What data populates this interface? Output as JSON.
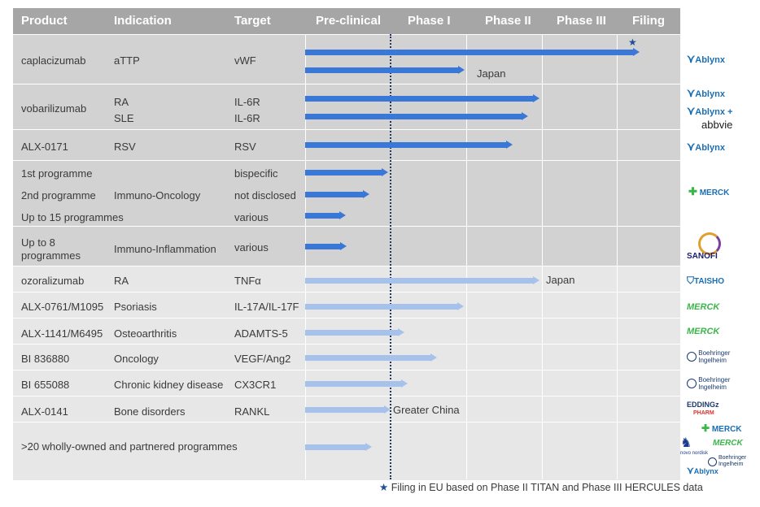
{
  "headers": [
    "Product",
    "Indication",
    "Target",
    "Pre-clinical",
    "Phase I",
    "Phase II",
    "Phase III",
    "Filing"
  ],
  "chart_data": {
    "type": "table",
    "phases": [
      "Pre-clinical",
      "Phase I",
      "Phase II",
      "Phase III",
      "Filing"
    ],
    "rows": [
      {
        "product": "caplacizumab",
        "indication": "aTTP",
        "target": "vWF",
        "progress": [
          4.35,
          1.97
        ],
        "notes": [
          "",
          "Japan"
        ],
        "star": true,
        "partner": "Ablynx",
        "group": "dark"
      },
      {
        "product": "vobarilizumab",
        "indication": [
          "RA",
          "SLE"
        ],
        "target": [
          "IL-6R",
          "IL-6R"
        ],
        "progress": [
          2.96,
          2.81
        ],
        "partner": [
          "Ablynx",
          "Ablynx +",
          "abbvie"
        ],
        "group": "dark"
      },
      {
        "product": "ALX-0171",
        "indication": "RSV",
        "target": "RSV",
        "progress": [
          2.6
        ],
        "partner": "Ablynx",
        "group": "dark"
      },
      {
        "product": [
          "1st programme",
          "2nd programme",
          "Up to 15 programmes"
        ],
        "indication": "Immuno-Oncology",
        "target": [
          "bispecific",
          "not disclosed",
          "various"
        ],
        "progress": [
          0.97,
          0.75,
          0.47
        ],
        "partner": "MERCK",
        "group": "dark"
      },
      {
        "product": "Up to 8 programmes",
        "indication": "Immuno-Inflammation",
        "target": "various",
        "progress": [
          0.48
        ],
        "partner": "SANOFI",
        "group": "dark"
      },
      {
        "product": "ozoralizumab",
        "indication": "RA",
        "target": "TNFα",
        "progress": [
          2.96
        ],
        "note": "Japan",
        "partner": "TAISHO",
        "group": "light"
      },
      {
        "product": "ALX-0761/M1095",
        "indication": "Psoriasis",
        "target": "IL-17A/IL-17F",
        "progress": [
          1.96
        ],
        "partner": "MERCK",
        "group": "light"
      },
      {
        "product": "ALX-1141/M6495",
        "indication": "Osteoarthritis",
        "target": "ADAMTS-5",
        "progress": [
          1.18
        ],
        "partner": "MERCK",
        "group": "light"
      },
      {
        "product": "BI 836880",
        "indication": "Oncology",
        "target": "VEGF/Ang2",
        "progress": [
          1.61
        ],
        "partner": "Boehringer Ingelheim",
        "group": "light"
      },
      {
        "product": "BI 655088",
        "indication": "Chronic kidney disease",
        "target": "CX3CR1",
        "progress": [
          1.22
        ],
        "partner": "Boehringer Ingelheim",
        "group": "light"
      },
      {
        "product": "ALX-0141",
        "indication": "Bone disorders",
        "target": "RANKL",
        "progress": [
          1.0
        ],
        "note": "Greater China",
        "partner": "EDDINGz PHARM",
        "group": "light"
      },
      {
        "product": ">20 wholly-owned  and partnered  programmes",
        "progress": [
          0.78
        ],
        "partner": [
          "MERCK",
          "novo nordisk",
          "MERCK",
          "Boehringer Ingelheim",
          "Ablynx"
        ],
        "group": "light"
      }
    ]
  },
  "cells": {
    "r1": {
      "product": "caplacizumab",
      "indication": "aTTP",
      "target": "vWF",
      "note": "Japan"
    },
    "r2": {
      "product": "vobarilizumab",
      "ind1": "RA",
      "ind2": "SLE",
      "t1": "IL-6R",
      "t2": "IL-6R"
    },
    "r3": {
      "product": "ALX-0171",
      "indication": "RSV",
      "target": "RSV"
    },
    "r4": {
      "p1": "1st programme",
      "p2": "2nd programme",
      "p3": "Up to 15 programmes",
      "indication": "Immuno-Oncology",
      "t1": "bispecific",
      "t2": "not disclosed",
      "t3": "various"
    },
    "r5": {
      "p1": "Up to 8",
      "p2": "programmes",
      "indication": "Immuno-Inflammation",
      "target": "various"
    },
    "r6": {
      "product": "ozoralizumab",
      "indication": "RA",
      "target": "TNFα",
      "note": "Japan"
    },
    "r7": {
      "product": "ALX-0761/M1095",
      "indication": "Psoriasis",
      "target": "IL-17A/IL-17F"
    },
    "r8": {
      "product": "ALX-1141/M6495",
      "indication": "Osteoarthritis",
      "target": "ADAMTS-5"
    },
    "r9": {
      "product": "BI 836880",
      "indication": "Oncology",
      "target": "VEGF/Ang2"
    },
    "r10": {
      "product": "BI 655088",
      "indication": "Chronic kidney disease",
      "target": "CX3CR1"
    },
    "r11": {
      "product": "ALX-0141",
      "indication": "Bone disorders",
      "target": "RANKL",
      "note": "Greater China"
    },
    "r12": {
      "product": ">20 wholly-owned  and partnered  programmes"
    }
  },
  "logos": {
    "ablynx": "Ablynx",
    "ablynx_plus": "Ablynx +",
    "abbvie": "abbvie",
    "merck": "MERCK",
    "sanofi": "SANOFI",
    "taisho": "TAISHO",
    "merck_green": "MERCK",
    "boehringer_1": "Boehringer",
    "boehringer_2": "Ingelheim",
    "edding_1": "EDDINGz",
    "edding_2": "PHARM",
    "novo": "novo nordisk"
  },
  "colors": {
    "header": "#a6a6a6",
    "dark_group": "#d2d2d2",
    "light_group": "#e7e7e7",
    "bar_dark": "#3a78d8",
    "bar_light": "#a7c2ea",
    "merck_blue": "#1a6fb4",
    "merck_green": "#3cb54a"
  },
  "footnote": {
    "star": "★",
    "text": "Filing in EU based on Phase II  TITAN  and Phase III  HERCULES data"
  }
}
